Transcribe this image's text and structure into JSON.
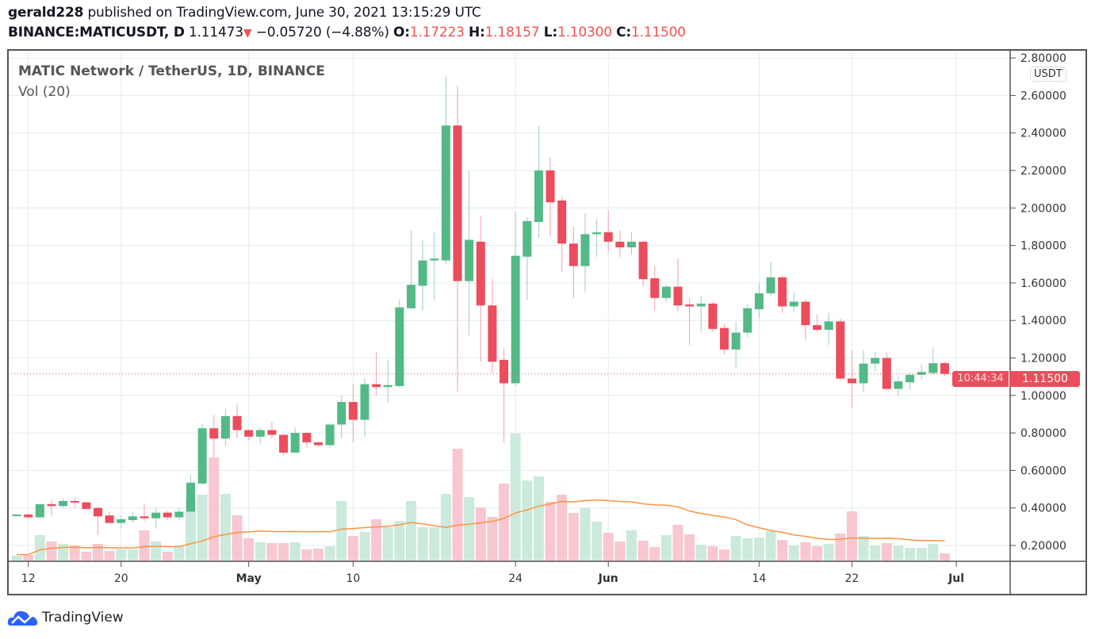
{
  "header": {
    "author": "gerald228",
    "published": "published on TradingView.com, June 30, 2021 13:15:29 UTC",
    "symbol": "BINANCE:MATICUSDT, D",
    "last": "1.11473",
    "change": "−0.05720 (−4.88%)",
    "o_label": "O:",
    "o": "1.17223",
    "h_label": "H:",
    "h": "1.18157",
    "l_label": "L:",
    "l": "1.10300",
    "c_label": "C:",
    "c": "1.11500"
  },
  "legend": {
    "title": "MATIC Network / TetherUS, 1D, BINANCE",
    "volume": "Vol (20)"
  },
  "currency_badge": "USDT",
  "price_tag": {
    "price": "1.11500",
    "countdown": "10:44:34"
  },
  "brand": "TradingView",
  "colors": {
    "up": "#53b987",
    "down": "#eb4d5c",
    "up_vol": "#cbeadb",
    "down_vol": "#f8c7cf",
    "ma": "#ff9340",
    "grid": "#e1ecf2"
  },
  "chart_data": {
    "type": "candlestick",
    "title": "MATIC Network / TetherUS, 1D, BINANCE",
    "ylim": [
      0.12,
      2.84
    ],
    "last_price": 1.115,
    "y_ticks": [
      "0.20000",
      "0.40000",
      "0.60000",
      "0.80000",
      "1.00000",
      "1.20000",
      "1.40000",
      "1.60000",
      "1.80000",
      "2.00000",
      "2.20000",
      "2.40000",
      "2.60000",
      "2.80000"
    ],
    "x_ticks": [
      {
        "label": "12",
        "date": "2021-04-12"
      },
      {
        "label": "20",
        "date": "2021-04-20"
      },
      {
        "label": "May",
        "date": "2021-05-01"
      },
      {
        "label": "10",
        "date": "2021-05-10"
      },
      {
        "label": "24",
        "date": "2021-05-24"
      },
      {
        "label": "Jun",
        "date": "2021-06-01"
      },
      {
        "label": "14",
        "date": "2021-06-14"
      },
      {
        "label": "22",
        "date": "2021-06-22"
      },
      {
        "label": "Jul",
        "date": "2021-07-01"
      }
    ],
    "volume_ma_period": 20,
    "start_date": "2021-04-10",
    "candles": [
      [
        0.365,
        0.37,
        0.355,
        0.36,
        10
      ],
      [
        0.36,
        0.367,
        0.355,
        0.365,
        7
      ],
      [
        0.365,
        0.37,
        0.345,
        0.35,
        8
      ],
      [
        0.35,
        0.42,
        0.35,
        0.42,
        33
      ],
      [
        0.42,
        0.445,
        0.36,
        0.41,
        25
      ],
      [
        0.41,
        0.45,
        0.4,
        0.437,
        22
      ],
      [
        0.437,
        0.455,
        0.4,
        0.43,
        20
      ],
      [
        0.43,
        0.433,
        0.39,
        0.395,
        12
      ],
      [
        0.4,
        0.405,
        0.255,
        0.355,
        22
      ],
      [
        0.36,
        0.38,
        0.32,
        0.32,
        13
      ],
      [
        0.32,
        0.36,
        0.29,
        0.34,
        15
      ],
      [
        0.335,
        0.38,
        0.32,
        0.355,
        15
      ],
      [
        0.355,
        0.42,
        0.33,
        0.345,
        39
      ],
      [
        0.345,
        0.4,
        0.29,
        0.375,
        25
      ],
      [
        0.375,
        0.385,
        0.335,
        0.35,
        12
      ],
      [
        0.35,
        0.4,
        0.335,
        0.38,
        19
      ],
      [
        0.38,
        0.575,
        0.375,
        0.535,
        79
      ],
      [
        0.53,
        0.85,
        0.525,
        0.825,
        84
      ],
      [
        0.825,
        0.895,
        0.67,
        0.77,
        131
      ],
      [
        0.77,
        0.93,
        0.73,
        0.89,
        85
      ],
      [
        0.89,
        0.95,
        0.77,
        0.815,
        58
      ],
      [
        0.815,
        0.82,
        0.76,
        0.78,
        29
      ],
      [
        0.78,
        0.825,
        0.74,
        0.815,
        24
      ],
      [
        0.815,
        0.86,
        0.77,
        0.79,
        23
      ],
      [
        0.79,
        0.795,
        0.68,
        0.695,
        23
      ],
      [
        0.695,
        0.83,
        0.695,
        0.8,
        24
      ],
      [
        0.8,
        0.805,
        0.72,
        0.75,
        15
      ],
      [
        0.75,
        0.755,
        0.725,
        0.735,
        16
      ],
      [
        0.735,
        0.845,
        0.72,
        0.845,
        19
      ],
      [
        0.845,
        1.0,
        0.77,
        0.965,
        76
      ],
      [
        0.965,
        1.06,
        0.75,
        0.87,
        32
      ],
      [
        0.87,
        1.09,
        0.78,
        1.06,
        37
      ],
      [
        1.06,
        1.23,
        1.0,
        1.045,
        53
      ],
      [
        1.045,
        1.19,
        0.96,
        1.055,
        43
      ],
      [
        1.05,
        1.51,
        1.04,
        1.47,
        51
      ],
      [
        1.465,
        1.88,
        1.46,
        1.59,
        76
      ],
      [
        1.585,
        1.83,
        1.45,
        1.72,
        43
      ],
      [
        1.72,
        1.87,
        1.51,
        1.73,
        43
      ],
      [
        1.72,
        2.7,
        1.7,
        2.44,
        85
      ],
      [
        2.44,
        2.65,
        1.02,
        1.61,
        142
      ],
      [
        1.61,
        2.2,
        1.32,
        1.83,
        81
      ],
      [
        1.82,
        1.96,
        1.18,
        1.48,
        68
      ],
      [
        1.48,
        1.62,
        1.12,
        1.18,
        56
      ],
      [
        1.19,
        1.25,
        0.75,
        1.065,
        98
      ],
      [
        1.065,
        1.98,
        1.05,
        1.745,
        161
      ],
      [
        1.74,
        1.95,
        1.51,
        1.93,
        102
      ],
      [
        1.925,
        2.44,
        1.84,
        2.2,
        107
      ],
      [
        2.2,
        2.27,
        1.85,
        2.03,
        75
      ],
      [
        2.04,
        2.06,
        1.66,
        1.81,
        84
      ],
      [
        1.81,
        1.9,
        1.52,
        1.69,
        61
      ],
      [
        1.69,
        1.97,
        1.55,
        1.86,
        67
      ],
      [
        1.86,
        1.94,
        1.74,
        1.87,
        50
      ],
      [
        1.87,
        1.99,
        1.76,
        1.82,
        36
      ],
      [
        1.82,
        1.88,
        1.74,
        1.79,
        25
      ],
      [
        1.79,
        1.87,
        1.75,
        1.82,
        39
      ],
      [
        1.82,
        1.82,
        1.58,
        1.62,
        26
      ],
      [
        1.625,
        1.69,
        1.45,
        1.52,
        18
      ],
      [
        1.52,
        1.59,
        1.5,
        1.58,
        33
      ],
      [
        1.58,
        1.73,
        1.45,
        1.48,
        46
      ],
      [
        1.485,
        1.52,
        1.27,
        1.475,
        34
      ],
      [
        1.475,
        1.53,
        1.34,
        1.49,
        21
      ],
      [
        1.49,
        1.5,
        1.34,
        1.355,
        19
      ],
      [
        1.36,
        1.38,
        1.22,
        1.245,
        15
      ],
      [
        1.245,
        1.39,
        1.15,
        1.335,
        32
      ],
      [
        1.335,
        1.49,
        1.31,
        1.465,
        29
      ],
      [
        1.46,
        1.6,
        1.41,
        1.545,
        30
      ],
      [
        1.545,
        1.71,
        1.53,
        1.63,
        38
      ],
      [
        1.63,
        1.64,
        1.44,
        1.475,
        27
      ],
      [
        1.475,
        1.55,
        1.445,
        1.5,
        20
      ],
      [
        1.5,
        1.51,
        1.3,
        1.375,
        24
      ],
      [
        1.375,
        1.43,
        1.34,
        1.35,
        19
      ],
      [
        1.35,
        1.44,
        1.27,
        1.395,
        22
      ],
      [
        1.395,
        1.41,
        1.08,
        1.09,
        35
      ],
      [
        1.09,
        1.24,
        0.93,
        1.065,
        63
      ],
      [
        1.065,
        1.24,
        1.02,
        1.17,
        32
      ],
      [
        1.17,
        1.235,
        1.13,
        1.2,
        20
      ],
      [
        1.2,
        1.23,
        1.03,
        1.035,
        23
      ],
      [
        1.035,
        1.1,
        1.0,
        1.075,
        20
      ],
      [
        1.07,
        1.12,
        1.03,
        1.11,
        17
      ],
      [
        1.11,
        1.165,
        1.085,
        1.125,
        17
      ],
      [
        1.12,
        1.25,
        1.11,
        1.172,
        22
      ],
      [
        1.17223,
        1.18157,
        1.103,
        1.115,
        10
      ]
    ]
  }
}
